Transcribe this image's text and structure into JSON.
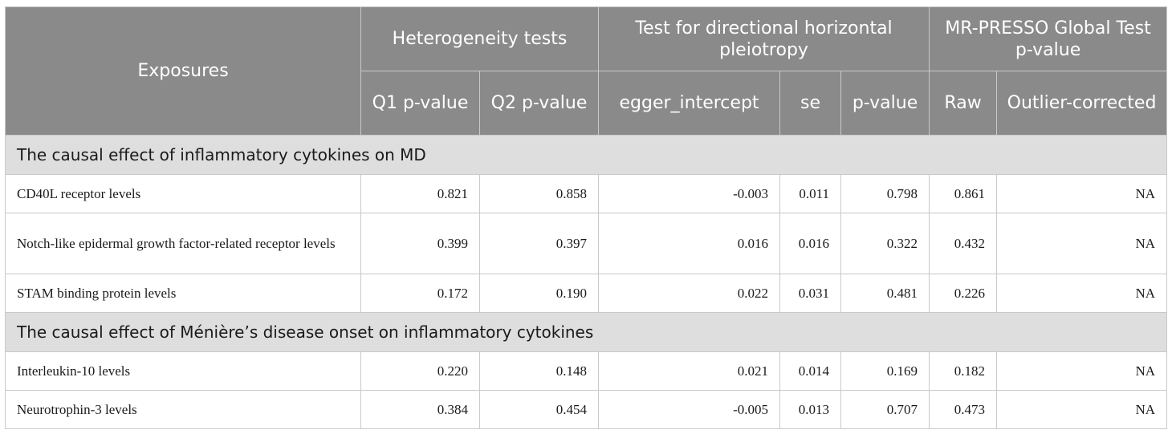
{
  "table": {
    "headers": {
      "exposures": "Exposures",
      "heterogeneity": "Heterogeneity tests",
      "directional": "Test for directional horizontal pleiotropy",
      "mrpresso": "MR-PRESSO Global Test p-value",
      "q1": "Q1 p-value",
      "q2": "Q2 p-value",
      "egger_intercept": "egger_intercept",
      "se": "se",
      "pvalue": "p-value",
      "raw": "Raw",
      "outlier_corrected": "Outlier-corrected"
    },
    "sections": [
      {
        "title": "The causal effect of inflammatory cytokines on MD",
        "rows": [
          {
            "exposure": "CD40L receptor levels",
            "q1": "0.821",
            "q2": "0.858",
            "egger": "-0.003",
            "se": "0.011",
            "p": "0.798",
            "raw": "0.861",
            "corrected": "NA"
          },
          {
            "exposure": "Notch-like epidermal growth factor-related receptor levels",
            "q1": "0.399",
            "q2": "0.397",
            "egger": "0.016",
            "se": "0.016",
            "p": "0.322",
            "raw": "0.432",
            "corrected": "NA"
          },
          {
            "exposure": "STAM binding protein levels",
            "q1": "0.172",
            "q2": "0.190",
            "egger": "0.022",
            "se": "0.031",
            "p": "0.481",
            "raw": "0.226",
            "corrected": "NA"
          }
        ]
      },
      {
        "title": "The causal effect of Ménière’s disease onset on inflammatory cytokines",
        "rows": [
          {
            "exposure": "Interleukin-10 levels",
            "q1": "0.220",
            "q2": "0.148",
            "egger": "0.021",
            "se": "0.014",
            "p": "0.169",
            "raw": "0.182",
            "corrected": "NA"
          },
          {
            "exposure": "Neurotrophin-3 levels",
            "q1": "0.384",
            "q2": "0.454",
            "egger": "-0.005",
            "se": "0.013",
            "p": "0.707",
            "raw": "0.473",
            "corrected": "NA"
          }
        ]
      }
    ]
  }
}
